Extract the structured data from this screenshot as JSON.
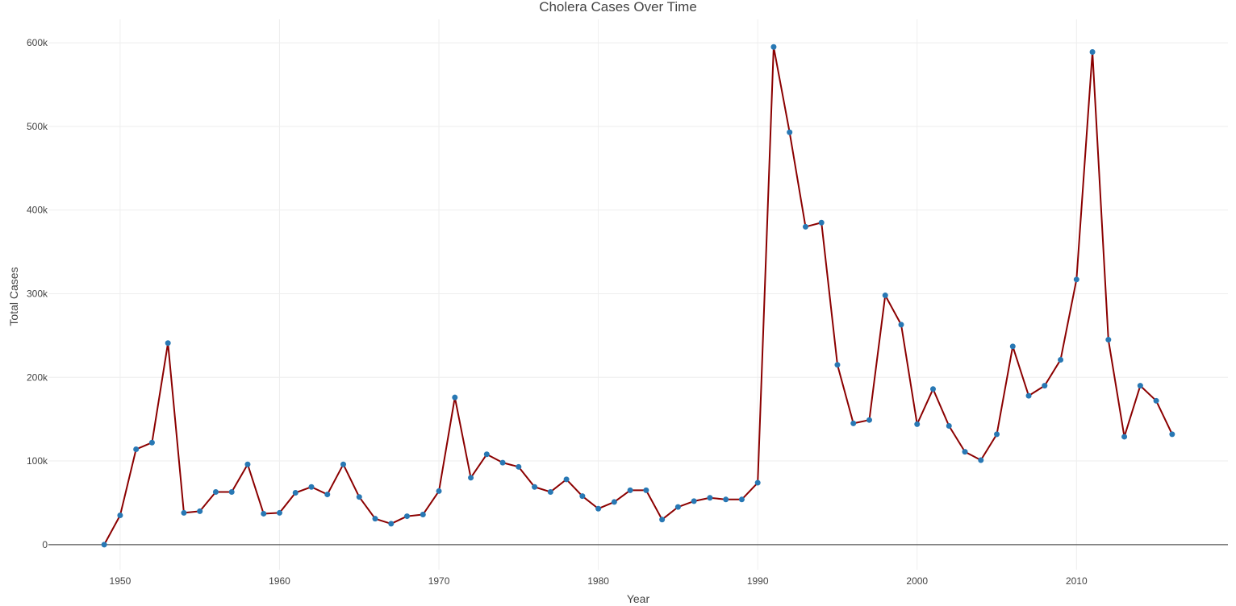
{
  "chart_data": {
    "type": "line",
    "title": "Cholera Cases Over Time",
    "xlabel": "Year",
    "ylabel": "Total Cases",
    "xlim": [
      1945.5,
      2019.5
    ],
    "ylim": [
      -30000,
      628000
    ],
    "xticks": [
      1950,
      1960,
      1970,
      1980,
      1990,
      2000,
      2010
    ],
    "xtick_labels": [
      "1950",
      "1960",
      "1970",
      "1980",
      "1990",
      "2000",
      "2010"
    ],
    "yticks": [
      0,
      100000,
      200000,
      300000,
      400000,
      500000,
      600000
    ],
    "ytick_labels": [
      "0",
      "100k",
      "200k",
      "300k",
      "400k",
      "500k",
      "600k"
    ],
    "grid": true,
    "line_color": "#8b0000",
    "marker_color": "#2878b4",
    "x": [
      1949,
      1950,
      1951,
      1952,
      1953,
      1954,
      1955,
      1956,
      1957,
      1958,
      1959,
      1960,
      1961,
      1962,
      1963,
      1964,
      1965,
      1966,
      1967,
      1968,
      1969,
      1970,
      1971,
      1972,
      1973,
      1974,
      1975,
      1976,
      1977,
      1978,
      1979,
      1980,
      1981,
      1982,
      1983,
      1984,
      1985,
      1986,
      1987,
      1988,
      1989,
      1990,
      1991,
      1992,
      1993,
      1994,
      1995,
      1996,
      1997,
      1998,
      1999,
      2000,
      2001,
      2002,
      2003,
      2004,
      2005,
      2006,
      2007,
      2008,
      2009,
      2010,
      2011,
      2012,
      2013,
      2014,
      2015,
      2016
    ],
    "y": [
      0,
      35000,
      114000,
      122000,
      241000,
      38000,
      40000,
      63000,
      63000,
      96000,
      37000,
      38000,
      62000,
      69000,
      60000,
      96000,
      57000,
      31000,
      25000,
      34000,
      36000,
      64000,
      176000,
      80000,
      108000,
      98000,
      93000,
      69000,
      63000,
      78000,
      58000,
      43000,
      51000,
      65000,
      65000,
      30000,
      45000,
      52000,
      56000,
      54000,
      54000,
      74000,
      595000,
      493000,
      380000,
      385000,
      215000,
      145000,
      149000,
      298000,
      263000,
      144000,
      186000,
      142000,
      111000,
      101000,
      132000,
      237000,
      178000,
      190000,
      221000,
      317000,
      589000,
      245000,
      129000,
      190000,
      172000,
      132000
    ]
  }
}
